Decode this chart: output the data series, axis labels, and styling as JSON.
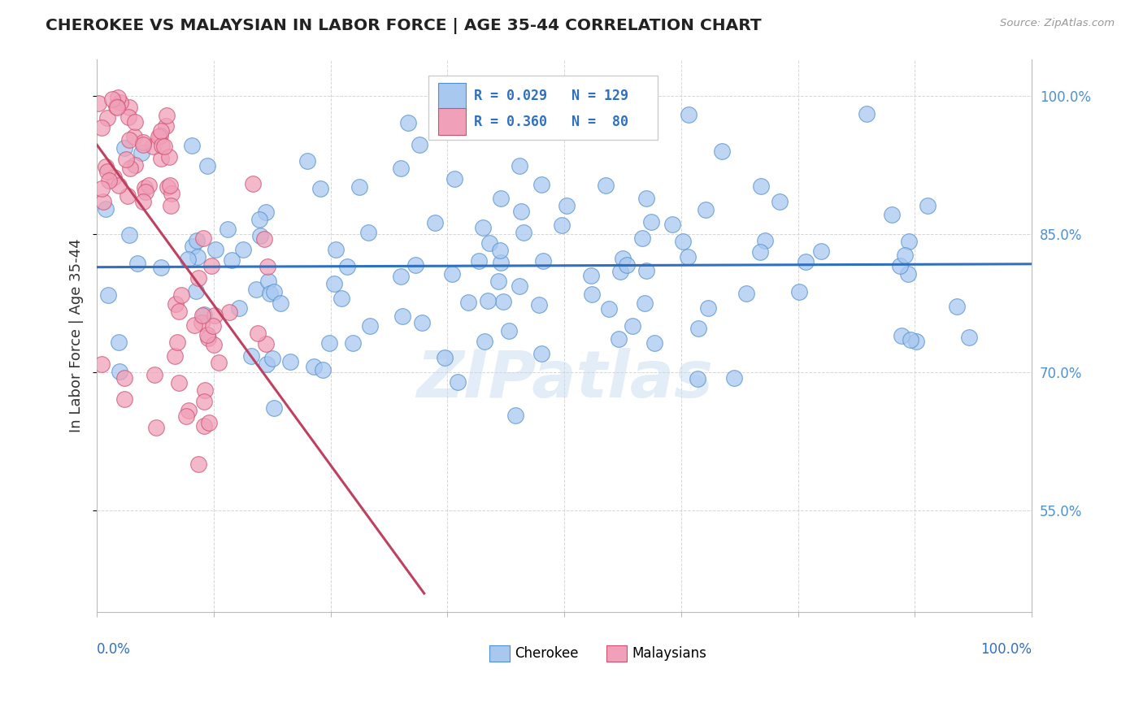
{
  "title": "CHEROKEE VS MALAYSIAN IN LABOR FORCE | AGE 35-44 CORRELATION CHART",
  "source": "Source: ZipAtlas.com",
  "ylabel": "In Labor Force | Age 35-44",
  "legend_cherokee_r": "R = 0.029",
  "legend_cherokee_n": "N = 129",
  "legend_malaysian_r": "R = 0.360",
  "legend_malaysian_n": "N =  80",
  "cherokee_fill": "#a8c8f0",
  "cherokee_edge": "#5090d0",
  "malaysian_fill": "#f0a0b8",
  "malaysian_edge": "#d05070",
  "cherokee_line": "#3070c0",
  "malaysian_line": "#c04060",
  "right_tick_color": "#5090d0",
  "yticks": [
    0.55,
    0.7,
    0.85,
    1.0
  ],
  "ytick_labels": [
    "55.0%",
    "70.0%",
    "85.0%",
    "100.0%"
  ],
  "xlim": [
    0.0,
    1.0
  ],
  "ylim": [
    0.44,
    1.04
  ]
}
